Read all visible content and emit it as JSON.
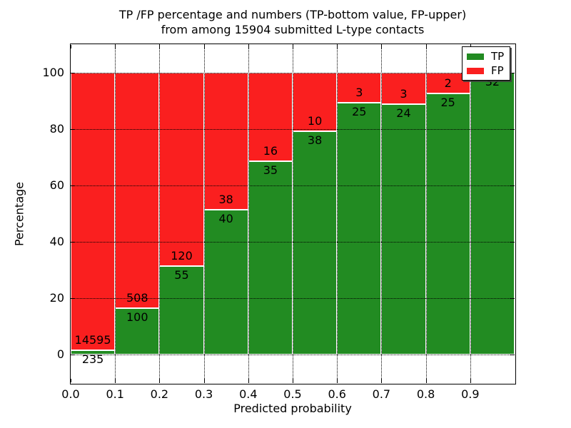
{
  "figure": {
    "title_line1": "TP /FP percentage and numbers (TP-bottom value, FP-upper)",
    "title_line2": "from among 15904 submitted L-type contacts",
    "xlabel": "Predicted probability",
    "ylabel": "Percentage"
  },
  "chart_data": {
    "type": "bar",
    "stacked": true,
    "normalized_to_percent": true,
    "title": "TP /FP percentage and numbers (TP-bottom value, FP-upper) from among 15904 submitted L-type contacts",
    "xlabel": "Predicted probability",
    "ylabel": "Percentage",
    "xlim": [
      0.0,
      1.0
    ],
    "ylim": [
      -10,
      110
    ],
    "grid": true,
    "legend_position": "upper right",
    "total_contacts": 15904,
    "bin_width": 0.1,
    "bin_starts": [
      0.0,
      0.1,
      0.2,
      0.3,
      0.4,
      0.5,
      0.6,
      0.7,
      0.8,
      0.9
    ],
    "xtick_labels": [
      "0.0",
      "0.1",
      "0.2",
      "0.3",
      "0.4",
      "0.5",
      "0.6",
      "0.7",
      "0.8",
      "0.9"
    ],
    "ytick_values": [
      0,
      20,
      40,
      60,
      80,
      100
    ],
    "ytick_labels": [
      "0",
      "20",
      "40",
      "60",
      "80",
      "100"
    ],
    "series": [
      {
        "name": "TP",
        "color": "#228b22",
        "values": [
          235,
          100,
          55,
          40,
          35,
          38,
          25,
          24,
          25,
          32
        ]
      },
      {
        "name": "FP",
        "color": "#fa1f1f",
        "values": [
          14595,
          508,
          120,
          38,
          16,
          10,
          3,
          3,
          2,
          0
        ]
      }
    ]
  }
}
